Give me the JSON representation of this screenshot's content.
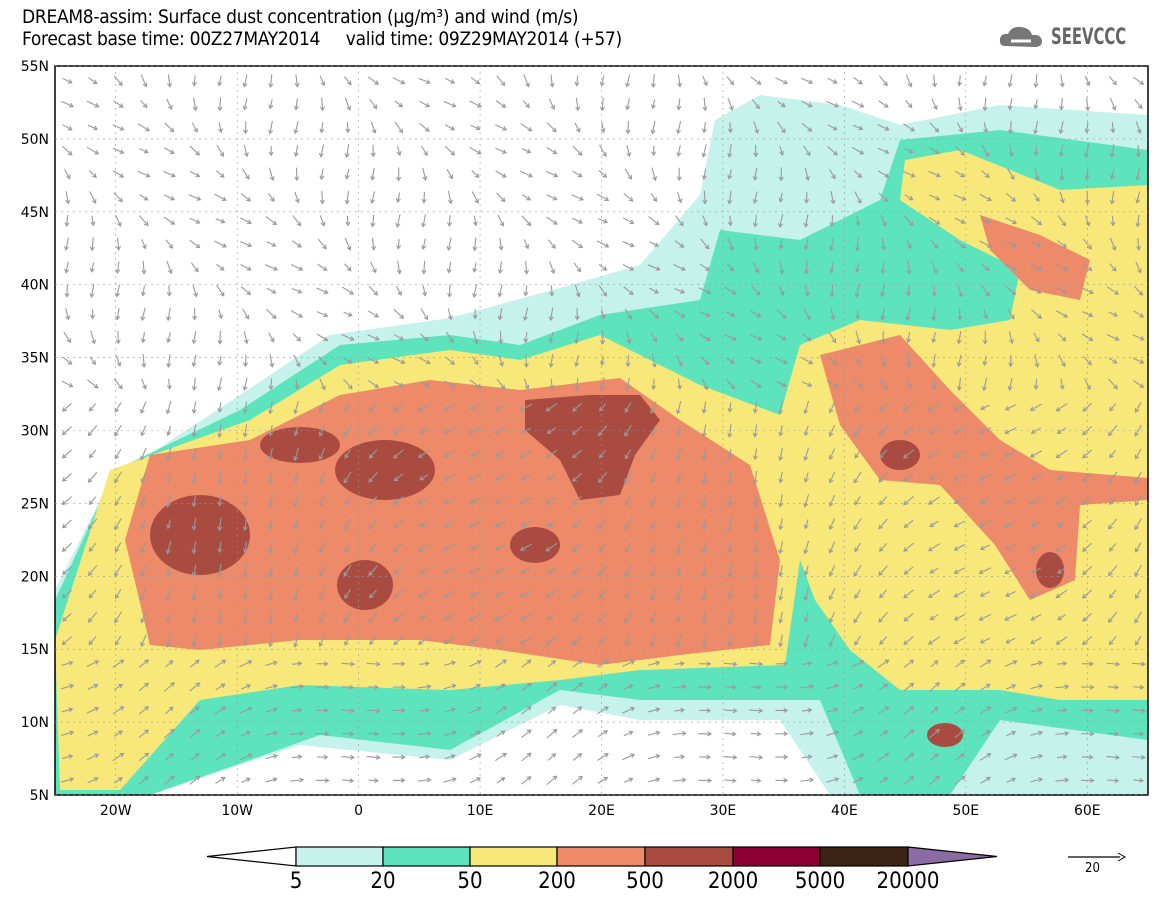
{
  "header": {
    "title_line1": "DREAM8-assim: Surface dust concentration (µg/m³) and wind (m/s)",
    "title_line2": "Forecast base time: 00Z27MAY2014     valid time: 09Z29MAY2014 (+57)",
    "logo_text": "SEEVCCC"
  },
  "map": {
    "lon_range": [
      -25,
      65
    ],
    "lat_range": [
      5,
      55
    ],
    "lat_ticks": [
      "55N",
      "50N",
      "45N",
      "40N",
      "35N",
      "30N",
      "25N",
      "20N",
      "15N",
      "10N",
      "5N"
    ],
    "lon_ticks": [
      "20W",
      "10W",
      "0",
      "10E",
      "20E",
      "30E",
      "40E",
      "50E",
      "60E"
    ]
  },
  "colorbar": {
    "levels": [
      "5",
      "20",
      "50",
      "200",
      "500",
      "2000",
      "5000",
      "20000"
    ],
    "colors": [
      "#ffffff",
      "#c6f2ec",
      "#5ee4bd",
      "#f8e87a",
      "#ec8a6a",
      "#a94b40",
      "#8a0030",
      "#3c2414",
      "#8c6aa2"
    ]
  },
  "wind_reference": {
    "label": "20"
  }
}
